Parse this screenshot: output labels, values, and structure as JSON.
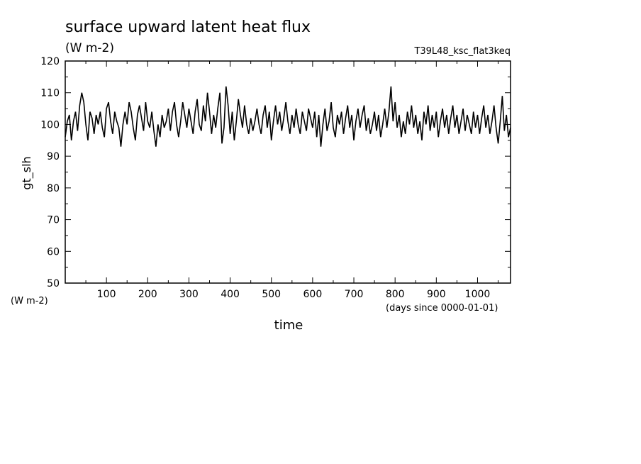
{
  "chart_data": {
    "type": "line",
    "title": "surface upward latent heat flux",
    "units_label": "(W m-2)",
    "run_label": "T39L48_ksc_flat3keq",
    "ylabel": "gt_slh",
    "y_units_label": "(W m-2)",
    "xlabel": "time",
    "x_units_label": "(days since 0000-01-01)",
    "xlim": [
      0,
      1080
    ],
    "ylim": [
      50,
      120
    ],
    "x_ticks": [
      100,
      200,
      300,
      400,
      500,
      600,
      700,
      800,
      900,
      1000
    ],
    "y_ticks": [
      50,
      60,
      70,
      80,
      90,
      100,
      110,
      120
    ],
    "grid": false,
    "series": [
      {
        "values": [
          [
            0,
            96
          ],
          [
            5,
            101
          ],
          [
            10,
            103
          ],
          [
            15,
            95
          ],
          [
            20,
            101
          ],
          [
            25,
            104
          ],
          [
            30,
            98
          ],
          [
            35,
            106
          ],
          [
            40,
            110
          ],
          [
            45,
            107
          ],
          [
            50,
            100
          ],
          [
            55,
            95
          ],
          [
            60,
            104
          ],
          [
            65,
            102
          ],
          [
            70,
            97
          ],
          [
            75,
            103
          ],
          [
            80,
            100
          ],
          [
            85,
            104
          ],
          [
            90,
            99
          ],
          [
            95,
            96
          ],
          [
            100,
            105
          ],
          [
            105,
            107
          ],
          [
            110,
            101
          ],
          [
            115,
            97
          ],
          [
            120,
            104
          ],
          [
            125,
            101
          ],
          [
            130,
            99
          ],
          [
            135,
            93
          ],
          [
            140,
            100
          ],
          [
            145,
            104
          ],
          [
            150,
            100
          ],
          [
            155,
            107
          ],
          [
            160,
            104
          ],
          [
            165,
            99
          ],
          [
            170,
            95
          ],
          [
            175,
            103
          ],
          [
            180,
            106
          ],
          [
            185,
            102
          ],
          [
            190,
            98
          ],
          [
            195,
            107
          ],
          [
            200,
            101
          ],
          [
            205,
            99
          ],
          [
            210,
            104
          ],
          [
            215,
            98
          ],
          [
            220,
            93
          ],
          [
            225,
            100
          ],
          [
            230,
            96
          ],
          [
            235,
            103
          ],
          [
            240,
            99
          ],
          [
            245,
            101
          ],
          [
            250,
            105
          ],
          [
            255,
            98
          ],
          [
            260,
            104
          ],
          [
            265,
            107
          ],
          [
            270,
            100
          ],
          [
            275,
            96
          ],
          [
            280,
            101
          ],
          [
            285,
            107
          ],
          [
            290,
            103
          ],
          [
            295,
            99
          ],
          [
            300,
            105
          ],
          [
            305,
            101
          ],
          [
            310,
            97
          ],
          [
            315,
            104
          ],
          [
            320,
            108
          ],
          [
            325,
            100
          ],
          [
            330,
            98
          ],
          [
            335,
            106
          ],
          [
            340,
            101
          ],
          [
            345,
            110
          ],
          [
            350,
            104
          ],
          [
            355,
            97
          ],
          [
            360,
            103
          ],
          [
            365,
            99
          ],
          [
            370,
            105
          ],
          [
            375,
            110
          ],
          [
            380,
            94
          ],
          [
            385,
            99
          ],
          [
            390,
            112
          ],
          [
            395,
            106
          ],
          [
            400,
            97
          ],
          [
            405,
            104
          ],
          [
            410,
            95
          ],
          [
            415,
            101
          ],
          [
            420,
            108
          ],
          [
            425,
            103
          ],
          [
            430,
            99
          ],
          [
            435,
            106
          ],
          [
            440,
            100
          ],
          [
            445,
            97
          ],
          [
            450,
            102
          ],
          [
            455,
            98
          ],
          [
            460,
            101
          ],
          [
            465,
            105
          ],
          [
            470,
            100
          ],
          [
            475,
            97
          ],
          [
            480,
            103
          ],
          [
            485,
            106
          ],
          [
            490,
            99
          ],
          [
            495,
            104
          ],
          [
            500,
            95
          ],
          [
            505,
            101
          ],
          [
            510,
            106
          ],
          [
            515,
            100
          ],
          [
            520,
            104
          ],
          [
            525,
            98
          ],
          [
            530,
            102
          ],
          [
            535,
            107
          ],
          [
            540,
            101
          ],
          [
            545,
            97
          ],
          [
            550,
            103
          ],
          [
            555,
            99
          ],
          [
            560,
            105
          ],
          [
            565,
            100
          ],
          [
            570,
            97
          ],
          [
            575,
            104
          ],
          [
            580,
            101
          ],
          [
            585,
            98
          ],
          [
            590,
            105
          ],
          [
            595,
            102
          ],
          [
            600,
            99
          ],
          [
            605,
            104
          ],
          [
            610,
            96
          ],
          [
            615,
            103
          ],
          [
            620,
            93
          ],
          [
            625,
            100
          ],
          [
            630,
            105
          ],
          [
            635,
            98
          ],
          [
            640,
            101
          ],
          [
            645,
            107
          ],
          [
            650,
            99
          ],
          [
            655,
            96
          ],
          [
            660,
            103
          ],
          [
            665,
            100
          ],
          [
            670,
            104
          ],
          [
            675,
            97
          ],
          [
            680,
            102
          ],
          [
            685,
            106
          ],
          [
            690,
            99
          ],
          [
            695,
            103
          ],
          [
            700,
            95
          ],
          [
            705,
            101
          ],
          [
            710,
            105
          ],
          [
            715,
            99
          ],
          [
            720,
            103
          ],
          [
            725,
            106
          ],
          [
            730,
            98
          ],
          [
            735,
            102
          ],
          [
            740,
            97
          ],
          [
            745,
            100
          ],
          [
            750,
            104
          ],
          [
            755,
            98
          ],
          [
            760,
            103
          ],
          [
            765,
            96
          ],
          [
            770,
            100
          ],
          [
            775,
            105
          ],
          [
            780,
            99
          ],
          [
            785,
            104
          ],
          [
            790,
            112
          ],
          [
            795,
            101
          ],
          [
            800,
            107
          ],
          [
            805,
            99
          ],
          [
            810,
            103
          ],
          [
            815,
            96
          ],
          [
            820,
            101
          ],
          [
            825,
            97
          ],
          [
            830,
            104
          ],
          [
            835,
            100
          ],
          [
            840,
            106
          ],
          [
            845,
            99
          ],
          [
            850,
            103
          ],
          [
            855,
            97
          ],
          [
            860,
            101
          ],
          [
            865,
            95
          ],
          [
            870,
            104
          ],
          [
            875,
            100
          ],
          [
            880,
            106
          ],
          [
            885,
            98
          ],
          [
            890,
            103
          ],
          [
            895,
            99
          ],
          [
            900,
            104
          ],
          [
            905,
            96
          ],
          [
            910,
            101
          ],
          [
            915,
            105
          ],
          [
            920,
            99
          ],
          [
            925,
            103
          ],
          [
            930,
            97
          ],
          [
            935,
            102
          ],
          [
            940,
            106
          ],
          [
            945,
            99
          ],
          [
            950,
            103
          ],
          [
            955,
            97
          ],
          [
            960,
            101
          ],
          [
            965,
            105
          ],
          [
            970,
            98
          ],
          [
            975,
            103
          ],
          [
            980,
            100
          ],
          [
            985,
            97
          ],
          [
            990,
            104
          ],
          [
            995,
            99
          ],
          [
            1000,
            103
          ],
          [
            1005,
            97
          ],
          [
            1010,
            102
          ],
          [
            1015,
            106
          ],
          [
            1020,
            99
          ],
          [
            1025,
            103
          ],
          [
            1030,
            97
          ],
          [
            1035,
            101
          ],
          [
            1040,
            106
          ],
          [
            1045,
            99
          ],
          [
            1050,
            94
          ],
          [
            1055,
            101
          ],
          [
            1060,
            109
          ],
          [
            1065,
            98
          ],
          [
            1070,
            103
          ],
          [
            1075,
            96
          ],
          [
            1080,
            99
          ]
        ]
      }
    ]
  }
}
